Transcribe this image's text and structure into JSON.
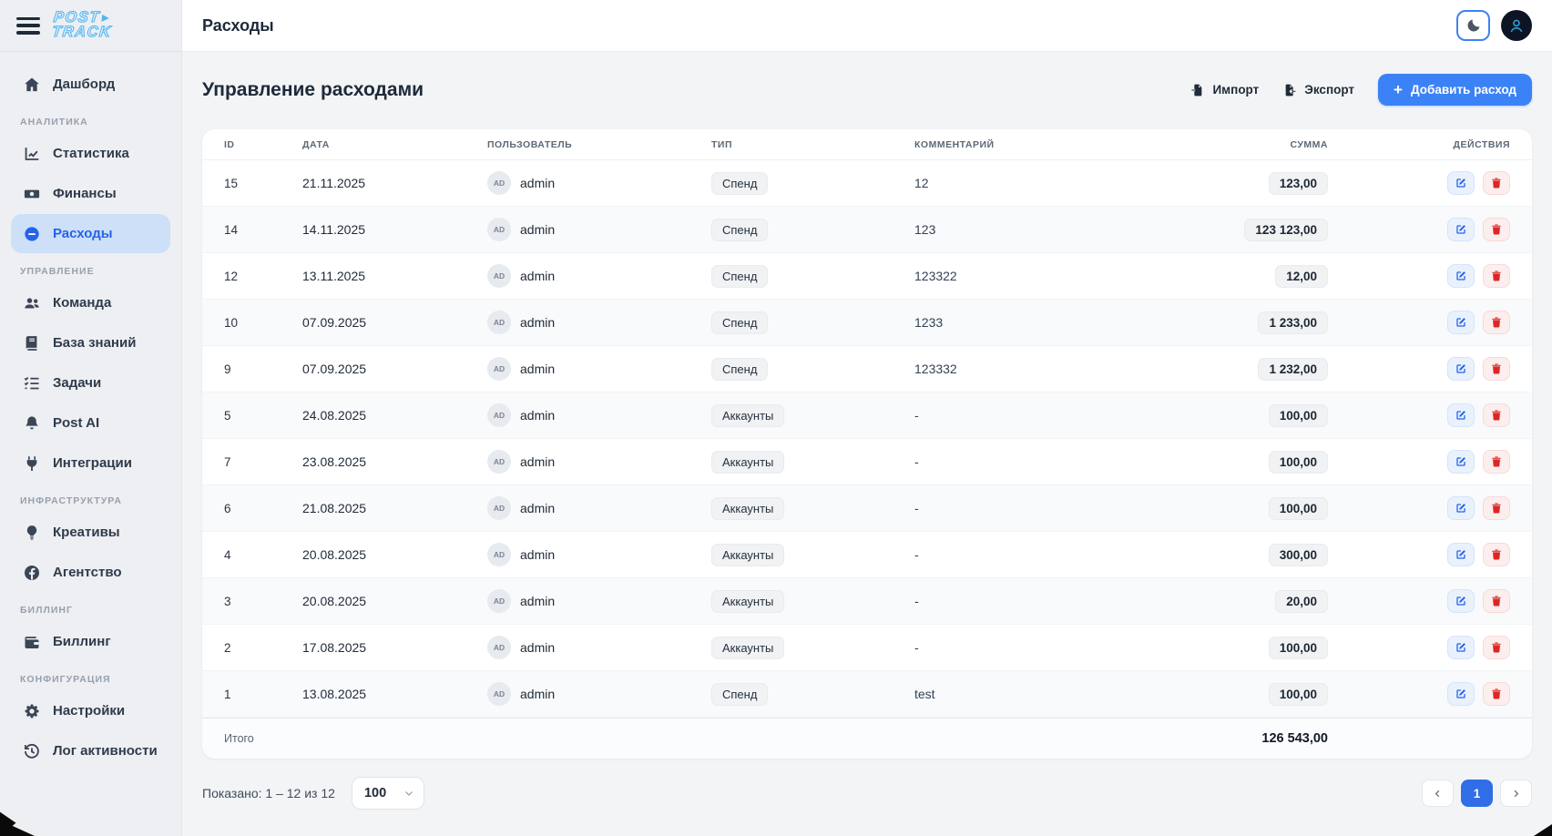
{
  "brand": {
    "line1": "POST",
    "line2": "TRACK"
  },
  "topbar": {
    "title": "Расходы"
  },
  "sidebar": {
    "sections": [
      {
        "label": "",
        "items": [
          {
            "label": "Дашборд",
            "icon": "home-icon",
            "active": false
          }
        ]
      },
      {
        "label": "АНАЛИТИКА",
        "items": [
          {
            "label": "Статистика",
            "icon": "chart-line-icon",
            "active": false
          },
          {
            "label": "Финансы",
            "icon": "money-icon",
            "active": false
          },
          {
            "label": "Расходы",
            "icon": "minus-circle-icon",
            "active": true
          }
        ]
      },
      {
        "label": "УПРАВЛЕНИЕ",
        "items": [
          {
            "label": "Команда",
            "icon": "users-icon",
            "active": false
          },
          {
            "label": "База знаний",
            "icon": "book-icon",
            "active": false
          },
          {
            "label": "Задачи",
            "icon": "tasks-icon",
            "active": false
          },
          {
            "label": "Post AI",
            "icon": "bell-icon",
            "active": false
          },
          {
            "label": "Интеграции",
            "icon": "plug-icon",
            "active": false
          }
        ]
      },
      {
        "label": "ИНФРАСТРУКТУРА",
        "items": [
          {
            "label": "Креативы",
            "icon": "lightbulb-icon",
            "active": false
          },
          {
            "label": "Агентство",
            "icon": "facebook-icon",
            "active": false
          }
        ]
      },
      {
        "label": "БИЛЛИНГ",
        "items": [
          {
            "label": "Биллинг",
            "icon": "wallet-icon",
            "active": false
          }
        ]
      },
      {
        "label": "КОНФИГУРАЦИЯ",
        "items": [
          {
            "label": "Настройки",
            "icon": "gear-icon",
            "active": false
          },
          {
            "label": "Лог активности",
            "icon": "history-icon",
            "active": false
          }
        ]
      }
    ]
  },
  "page": {
    "heading": "Управление расходами",
    "import_label": "Импорт",
    "export_label": "Экспорт",
    "add_label": "Добавить расход"
  },
  "table": {
    "columns": {
      "id": "ID",
      "date": "ДАТА",
      "user": "ПОЛЬЗОВАТЕЛЬ",
      "type": "ТИП",
      "comment": "КОММЕНТАРИЙ",
      "amount": "СУММА",
      "actions": "ДЕЙСТВИЯ"
    },
    "rows": [
      {
        "id": "15",
        "date": "21.11.2025",
        "user": "admin",
        "user_initials": "AD",
        "type": "Спенд",
        "comment": "12",
        "amount": "123,00"
      },
      {
        "id": "14",
        "date": "14.11.2025",
        "user": "admin",
        "user_initials": "AD",
        "type": "Спенд",
        "comment": "123",
        "amount": "123 123,00"
      },
      {
        "id": "12",
        "date": "13.11.2025",
        "user": "admin",
        "user_initials": "AD",
        "type": "Спенд",
        "comment": "123322",
        "amount": "12,00"
      },
      {
        "id": "10",
        "date": "07.09.2025",
        "user": "admin",
        "user_initials": "AD",
        "type": "Спенд",
        "comment": "1233",
        "amount": "1 233,00"
      },
      {
        "id": "9",
        "date": "07.09.2025",
        "user": "admin",
        "user_initials": "AD",
        "type": "Спенд",
        "comment": "123332",
        "amount": "1 232,00"
      },
      {
        "id": "5",
        "date": "24.08.2025",
        "user": "admin",
        "user_initials": "AD",
        "type": "Аккаунты",
        "comment": "-",
        "amount": "100,00"
      },
      {
        "id": "7",
        "date": "23.08.2025",
        "user": "admin",
        "user_initials": "AD",
        "type": "Аккаунты",
        "comment": "-",
        "amount": "100,00"
      },
      {
        "id": "6",
        "date": "21.08.2025",
        "user": "admin",
        "user_initials": "AD",
        "type": "Аккаунты",
        "comment": "-",
        "amount": "100,00"
      },
      {
        "id": "4",
        "date": "20.08.2025",
        "user": "admin",
        "user_initials": "AD",
        "type": "Аккаунты",
        "comment": "-",
        "amount": "300,00"
      },
      {
        "id": "3",
        "date": "20.08.2025",
        "user": "admin",
        "user_initials": "AD",
        "type": "Аккаунты",
        "comment": "-",
        "amount": "20,00"
      },
      {
        "id": "2",
        "date": "17.08.2025",
        "user": "admin",
        "user_initials": "AD",
        "type": "Аккаунты",
        "comment": "-",
        "amount": "100,00"
      },
      {
        "id": "1",
        "date": "13.08.2025",
        "user": "admin",
        "user_initials": "AD",
        "type": "Спенд",
        "comment": "test",
        "amount": "100,00"
      }
    ],
    "footer_label": "Итого",
    "footer_total": "126 543,00"
  },
  "pagination": {
    "summary": "Показано: 1 – 12 из 12",
    "page_size": "100",
    "page": "1"
  },
  "colors": {
    "accent": "#3b82f6",
    "active_link": "#2563eb",
    "danger": "#dc2626",
    "sidebar_active_bg": "#cde0f7",
    "logo_blue": "#55b5ee"
  }
}
